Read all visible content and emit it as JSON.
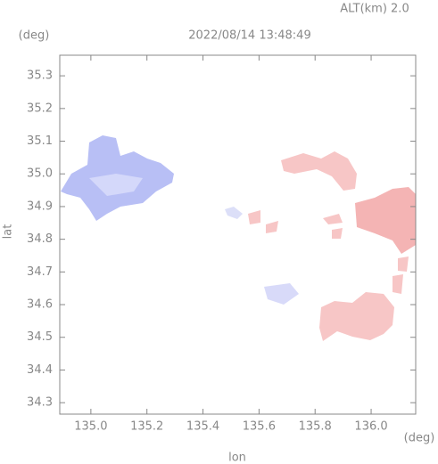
{
  "chart_data": {
    "type": "map",
    "title": "2022/08/14 13:48:49",
    "subtitle": "ALT(km) 2.0",
    "x_label": "lon",
    "y_label": "lat",
    "x_unit": "(deg)",
    "y_unit": "(deg)",
    "xlim": [
      134.889,
      136.159
    ],
    "ylim": [
      34.265,
      35.363
    ],
    "xticks": [
      {
        "value": 135,
        "label": "135.0"
      },
      135.2,
      135.4,
      135.6,
      135.8,
      {
        "value": 136,
        "label": "136.0"
      }
    ],
    "yticks": [
      {
        "value": 34.3,
        "label": "34.3"
      },
      34.4,
      34.5,
      34.6,
      34.7,
      34.8,
      34.9,
      {
        "value": 35,
        "label": "35.0"
      },
      35.1,
      35.2,
      35.3
    ]
  }
}
